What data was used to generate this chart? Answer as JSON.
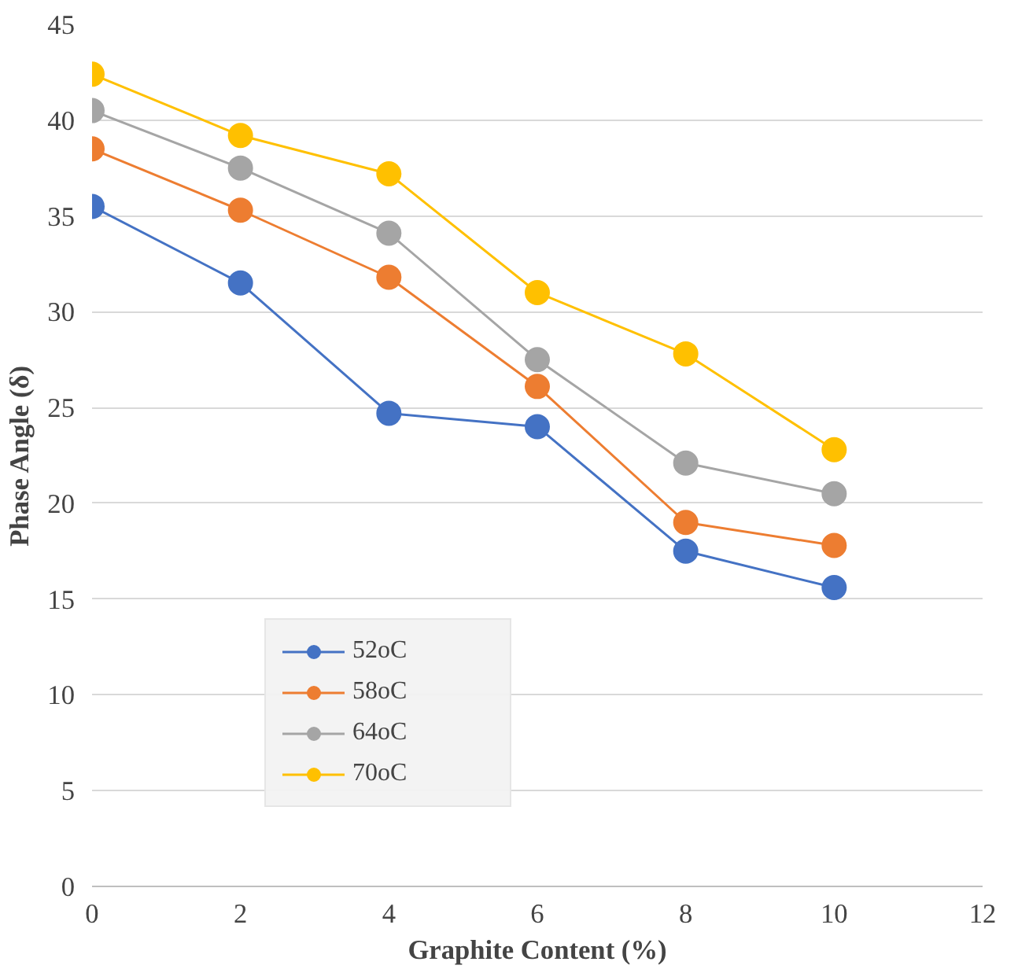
{
  "chart_data": {
    "type": "line",
    "xlabel": "Graphite Content (%)",
    "ylabel": "Phase Angle (δ)",
    "x": [
      0,
      2,
      4,
      6,
      8,
      10
    ],
    "series": [
      {
        "name": "52oC",
        "color": "#4472c4",
        "values": [
          35.5,
          31.5,
          24.7,
          24.0,
          17.5,
          15.6
        ]
      },
      {
        "name": "58oC",
        "color": "#ed7d31",
        "values": [
          38.5,
          35.3,
          31.8,
          26.1,
          19.0,
          17.8
        ]
      },
      {
        "name": "64oC",
        "color": "#a5a5a5",
        "values": [
          40.5,
          37.5,
          34.1,
          27.5,
          22.1,
          20.5
        ]
      },
      {
        "name": "70oC",
        "color": "#ffc000",
        "values": [
          42.4,
          39.2,
          37.2,
          31.0,
          27.8,
          22.8
        ]
      }
    ],
    "xlim": [
      0,
      12
    ],
    "xticks": [
      0,
      2,
      4,
      6,
      8,
      10,
      12
    ],
    "ylim": [
      0,
      45
    ],
    "yticks": [
      0,
      5,
      10,
      15,
      20,
      25,
      30,
      35,
      40,
      45
    ],
    "grid": "y",
    "legend": "bottom left",
    "marker": "circle",
    "line_style": "solid"
  }
}
